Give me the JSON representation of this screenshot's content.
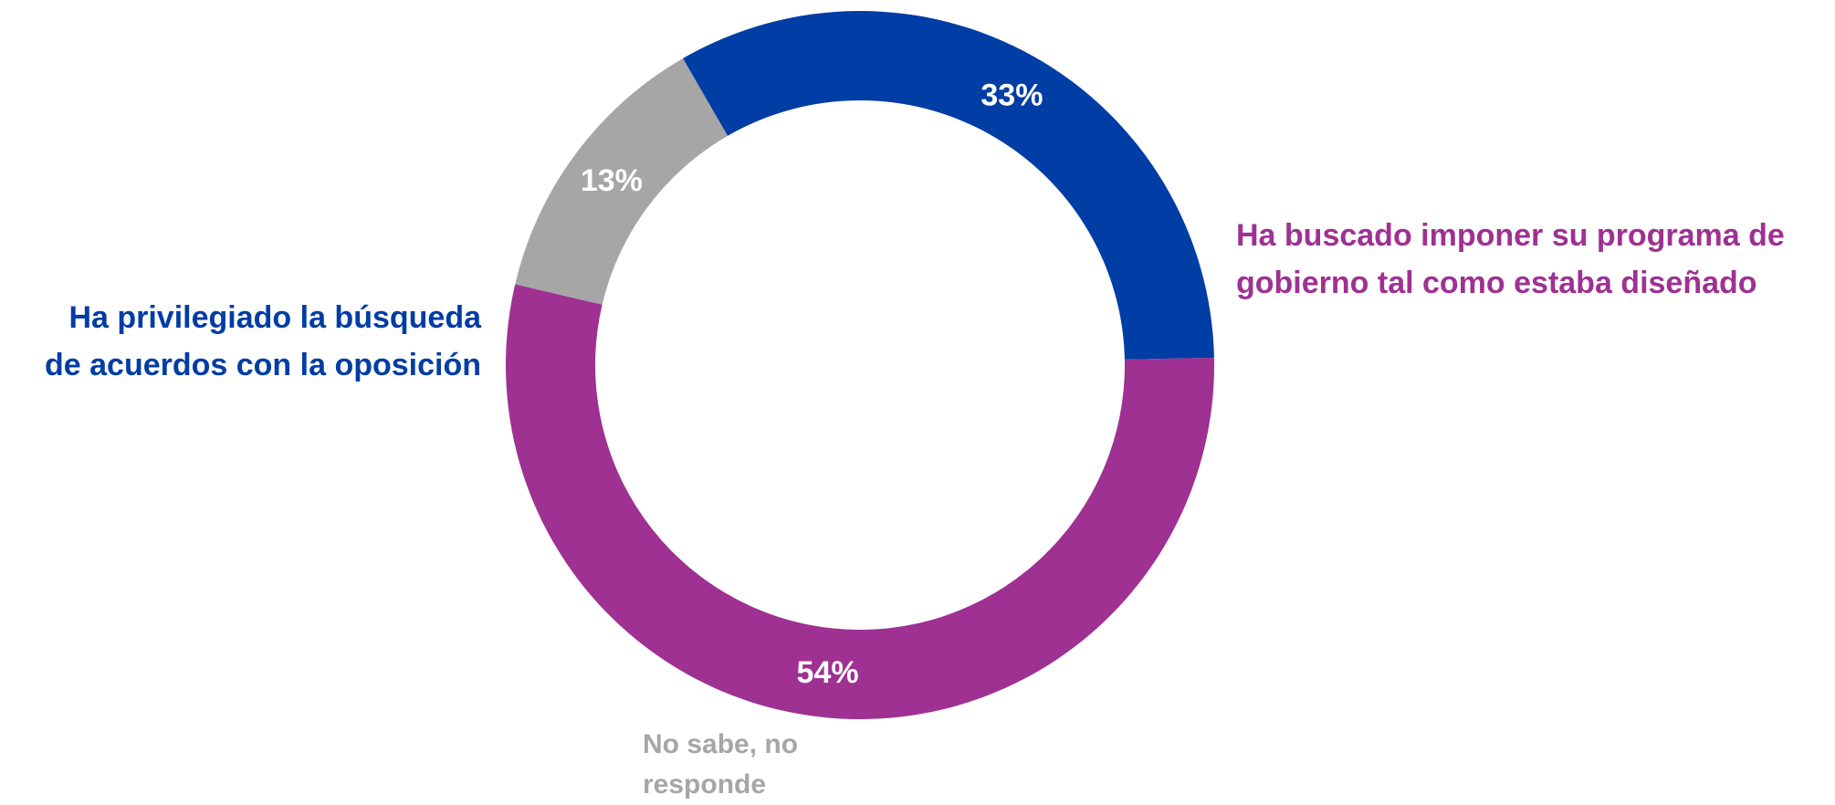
{
  "chart_data": {
    "type": "pie",
    "donut": true,
    "slices": [
      {
        "label_lines": [
          "Ha privilegiado la búsqueda",
          "de acuerdos con la oposición"
        ],
        "value": 33,
        "value_label": "33%",
        "color": "#003DA5"
      },
      {
        "label_lines": [
          "Ha buscado imponer su programa de",
          "gobierno tal como estaba diseñado"
        ],
        "value": 54,
        "value_label": "54%",
        "color": "#9E3192"
      },
      {
        "label_lines": [
          "No sabe, no",
          "responde"
        ],
        "value": 13,
        "value_label": "13%",
        "color": "#A6A6A6"
      }
    ],
    "start_angle_deg": 330,
    "value_label_color": "#FFFFFF"
  }
}
